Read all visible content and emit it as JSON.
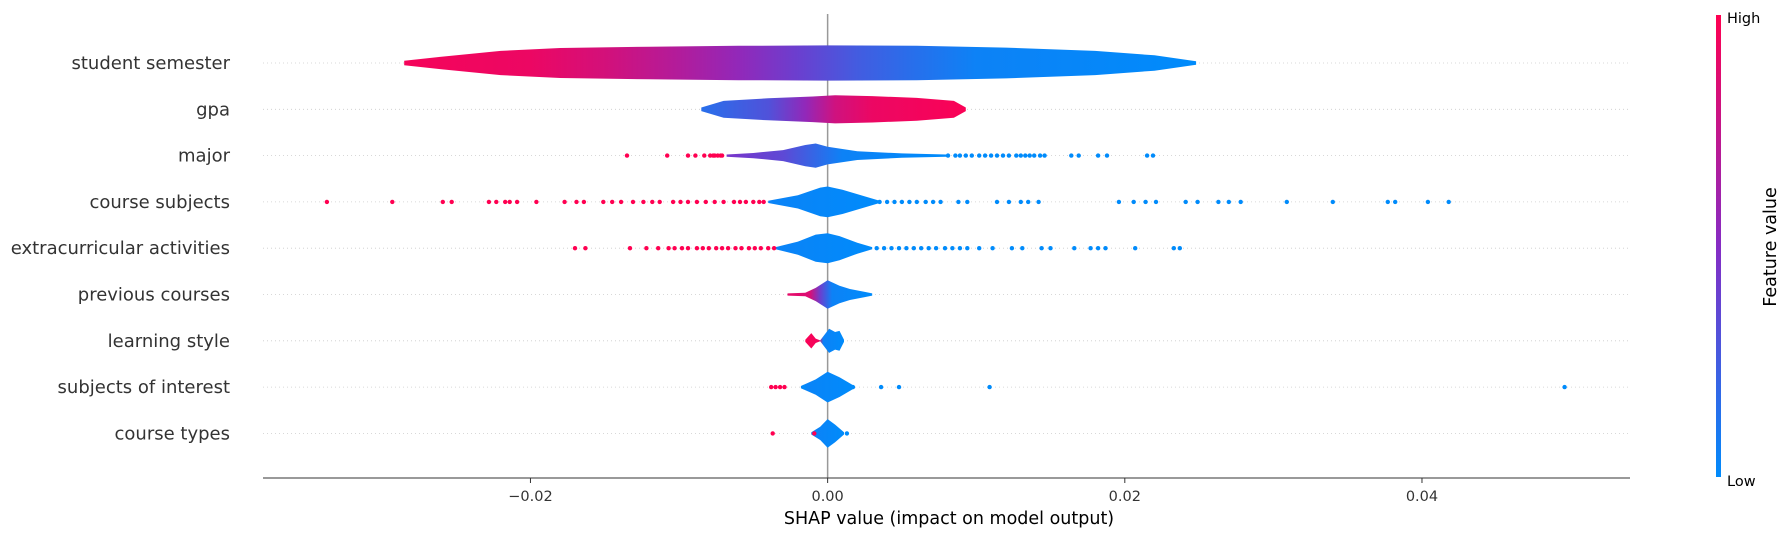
{
  "chart_data": {
    "type": "violin",
    "xlabel": "SHAP value (impact on model output)",
    "xlim": [
      -0.038,
      0.054
    ],
    "x_ticks": [
      "−0.02",
      "0.00",
      "0.02",
      "0.04"
    ],
    "x_tick_values": [
      -0.02,
      0.0,
      0.02,
      0.04
    ],
    "grid": false,
    "colorbar": {
      "label": "Feature value",
      "high_label": "High",
      "low_label": "Low",
      "low_color": "#008bfb",
      "high_color": "#ff0051"
    },
    "features": [
      {
        "name": "student semester",
        "range": [
          -0.0285,
          0.0248
        ],
        "profile": [
          [
            -0.0285,
            0.1
          ],
          [
            -0.026,
            0.28
          ],
          [
            -0.022,
            0.55
          ],
          [
            -0.018,
            0.68
          ],
          [
            -0.012,
            0.74
          ],
          [
            -0.006,
            0.78
          ],
          [
            0.0,
            0.8
          ],
          [
            0.006,
            0.78
          ],
          [
            0.012,
            0.7
          ],
          [
            0.018,
            0.55
          ],
          [
            0.022,
            0.35
          ],
          [
            0.0248,
            0.08
          ]
        ],
        "color_stops": [
          [
            -0.0285,
            0.96
          ],
          [
            -0.02,
            0.92
          ],
          [
            -0.015,
            0.82
          ],
          [
            -0.01,
            0.68
          ],
          [
            -0.006,
            0.55
          ],
          [
            -0.002,
            0.4
          ],
          [
            0.002,
            0.25
          ],
          [
            0.006,
            0.14
          ],
          [
            0.01,
            0.05
          ],
          [
            0.0248,
            0.0
          ]
        ],
        "points_high": [],
        "points_low": []
      },
      {
        "name": "gpa",
        "range": [
          -0.0085,
          0.0093
        ],
        "profile": [
          [
            -0.0085,
            0.08
          ],
          [
            -0.007,
            0.38
          ],
          [
            -0.004,
            0.5
          ],
          [
            -0.001,
            0.58
          ],
          [
            0.0005,
            0.64
          ],
          [
            0.003,
            0.6
          ],
          [
            0.006,
            0.52
          ],
          [
            0.0085,
            0.38
          ],
          [
            0.0093,
            0.08
          ]
        ],
        "color_stops": [
          [
            -0.0085,
            0.15
          ],
          [
            -0.004,
            0.3
          ],
          [
            -0.0015,
            0.55
          ],
          [
            0.0005,
            0.8
          ],
          [
            0.003,
            0.92
          ],
          [
            0.0093,
            0.98
          ]
        ],
        "points_high": [],
        "points_low": []
      },
      {
        "name": "major",
        "range": [
          -0.0068,
          0.008
        ],
        "profile": [
          [
            -0.0068,
            0.05
          ],
          [
            -0.005,
            0.12
          ],
          [
            -0.003,
            0.25
          ],
          [
            -0.0015,
            0.48
          ],
          [
            -0.0008,
            0.55
          ],
          [
            0.0,
            0.4
          ],
          [
            0.002,
            0.2
          ],
          [
            0.005,
            0.1
          ],
          [
            0.008,
            0.05
          ]
        ],
        "color_stops": [
          [
            -0.0068,
            0.45
          ],
          [
            -0.003,
            0.35
          ],
          [
            -0.001,
            0.2
          ],
          [
            0.001,
            0.05
          ],
          [
            0.008,
            0.0
          ]
        ],
        "points_high": [
          -0.0135,
          -0.0108,
          -0.0094,
          -0.0089,
          -0.0083,
          -0.0079,
          -0.0077,
          -0.0076,
          -0.0074,
          -0.0072,
          -0.0071
        ],
        "points_low": [
          0.0081,
          0.0086,
          0.0089,
          0.0093,
          0.0097,
          0.0102,
          0.0106,
          0.011,
          0.0114,
          0.0118,
          0.0122,
          0.0127,
          0.013,
          0.0133,
          0.0136,
          0.0139,
          0.0143,
          0.0146,
          0.0164,
          0.0169,
          0.0182,
          0.0188,
          0.0215,
          0.0219
        ]
      },
      {
        "name": "course subjects",
        "range": [
          -0.004,
          0.0035
        ],
        "profile": [
          [
            -0.004,
            0.05
          ],
          [
            -0.002,
            0.3
          ],
          [
            -0.0005,
            0.65
          ],
          [
            0.0,
            0.7
          ],
          [
            0.001,
            0.55
          ],
          [
            0.0025,
            0.25
          ],
          [
            0.0035,
            0.05
          ]
        ],
        "color_stops": [
          [
            -0.004,
            0.04
          ],
          [
            0.0035,
            0.0
          ]
        ],
        "points_high": [
          -0.0337,
          -0.0293,
          -0.0259,
          -0.0253,
          -0.0228,
          -0.0223,
          -0.0217,
          -0.0214,
          -0.0209,
          -0.0196,
          -0.0177,
          -0.0169,
          -0.0164,
          -0.0151,
          -0.0145,
          -0.0139,
          -0.0131,
          -0.0124,
          -0.0118,
          -0.0113,
          -0.0104,
          -0.0099,
          -0.0094,
          -0.0088,
          -0.0082,
          -0.0076,
          -0.007,
          -0.0063,
          -0.0059,
          -0.0055,
          -0.005,
          -0.0046,
          -0.0043
        ],
        "points_low": [
          0.0035,
          0.004,
          0.0045,
          0.005,
          0.0055,
          0.006,
          0.0066,
          0.0071,
          0.0076,
          0.0088,
          0.0094,
          0.0114,
          0.0122,
          0.013,
          0.0135,
          0.0142,
          0.0196,
          0.0206,
          0.0214,
          0.0221,
          0.0241,
          0.0249,
          0.0263,
          0.027,
          0.0278,
          0.0309,
          0.034,
          0.0377,
          0.0382,
          0.0404,
          0.0418
        ]
      },
      {
        "name": "extracurricular activities",
        "range": [
          -0.0035,
          0.003
        ],
        "profile": [
          [
            -0.0035,
            0.05
          ],
          [
            -0.002,
            0.3
          ],
          [
            -0.0008,
            0.62
          ],
          [
            0.0,
            0.68
          ],
          [
            0.0008,
            0.55
          ],
          [
            0.002,
            0.25
          ],
          [
            0.003,
            0.05
          ]
        ],
        "color_stops": [
          [
            -0.0035,
            0.04
          ],
          [
            0.003,
            0.0
          ]
        ],
        "points_high": [
          -0.017,
          -0.0163,
          -0.0133,
          -0.0122,
          -0.0114,
          -0.0107,
          -0.0103,
          -0.0098,
          -0.0094,
          -0.0088,
          -0.0084,
          -0.008,
          -0.0075,
          -0.0071,
          -0.0067,
          -0.0062,
          -0.0058,
          -0.0053,
          -0.0049,
          -0.0045,
          -0.004,
          -0.0036
        ],
        "points_low": [
          0.0033,
          0.0038,
          0.0043,
          0.0048,
          0.0053,
          0.0058,
          0.0063,
          0.0068,
          0.0073,
          0.0079,
          0.0084,
          0.0089,
          0.0094,
          0.0102,
          0.0111,
          0.0124,
          0.0131,
          0.0144,
          0.015,
          0.0166,
          0.0177,
          0.0182,
          0.0187,
          0.0207,
          0.0233,
          0.0237
        ]
      },
      {
        "name": "previous courses",
        "range": [
          -0.0027,
          0.003
        ],
        "profile": [
          [
            -0.0027,
            0.05
          ],
          [
            -0.0015,
            0.08
          ],
          [
            -0.0008,
            0.3
          ],
          [
            0.0,
            0.65
          ],
          [
            0.0008,
            0.4
          ],
          [
            0.0015,
            0.25
          ],
          [
            0.0025,
            0.12
          ],
          [
            0.003,
            0.05
          ]
        ],
        "color_stops": [
          [
            -0.0027,
            0.9
          ],
          [
            -0.0012,
            0.85
          ],
          [
            -0.0005,
            0.4
          ],
          [
            0.0003,
            0.05
          ],
          [
            0.003,
            0.0
          ]
        ],
        "points_high": [],
        "points_low": []
      },
      {
        "name": "learning style",
        "range": [
          -0.0015,
          0.0011
        ],
        "profile": [
          [
            -0.0015,
            0.05
          ],
          [
            -0.0011,
            0.35
          ],
          [
            -0.0008,
            0.1
          ],
          [
            -0.0005,
            0.02
          ],
          [
            0.0001,
            0.55
          ],
          [
            0.0005,
            0.4
          ],
          [
            0.0008,
            0.45
          ],
          [
            0.0011,
            0.05
          ]
        ],
        "color_stops": [
          [
            -0.0015,
            0.98
          ],
          [
            -0.0006,
            0.95
          ],
          [
            -0.0003,
            0.05
          ],
          [
            0.0011,
            0.0
          ]
        ],
        "points_high": [],
        "points_low": []
      },
      {
        "name": "subjects of interest",
        "range": [
          -0.0018,
          0.0018
        ],
        "profile": [
          [
            -0.0018,
            0.05
          ],
          [
            -0.0008,
            0.35
          ],
          [
            0.0,
            0.7
          ],
          [
            0.0008,
            0.45
          ],
          [
            0.0018,
            0.05
          ]
        ],
        "color_stops": [
          [
            -0.0018,
            0.04
          ],
          [
            0.0018,
            0.0
          ]
        ],
        "points_high": [
          -0.0038,
          -0.0035,
          -0.0032,
          -0.0029
        ],
        "points_low": [
          -0.0016,
          0.0017,
          0.0036,
          0.0048,
          0.0109,
          0.0496
        ]
      },
      {
        "name": "course types",
        "range": [
          -0.0011,
          0.0011
        ],
        "profile": [
          [
            -0.0011,
            0.05
          ],
          [
            -0.0005,
            0.3
          ],
          [
            0.0,
            0.65
          ],
          [
            0.0005,
            0.4
          ],
          [
            0.0011,
            0.05
          ]
        ],
        "color_stops": [
          [
            -0.0011,
            0.05
          ],
          [
            0.0011,
            0.0
          ]
        ],
        "points_high": [
          -0.0037,
          -0.0009
        ],
        "points_low": [
          0.0013
        ]
      }
    ]
  }
}
